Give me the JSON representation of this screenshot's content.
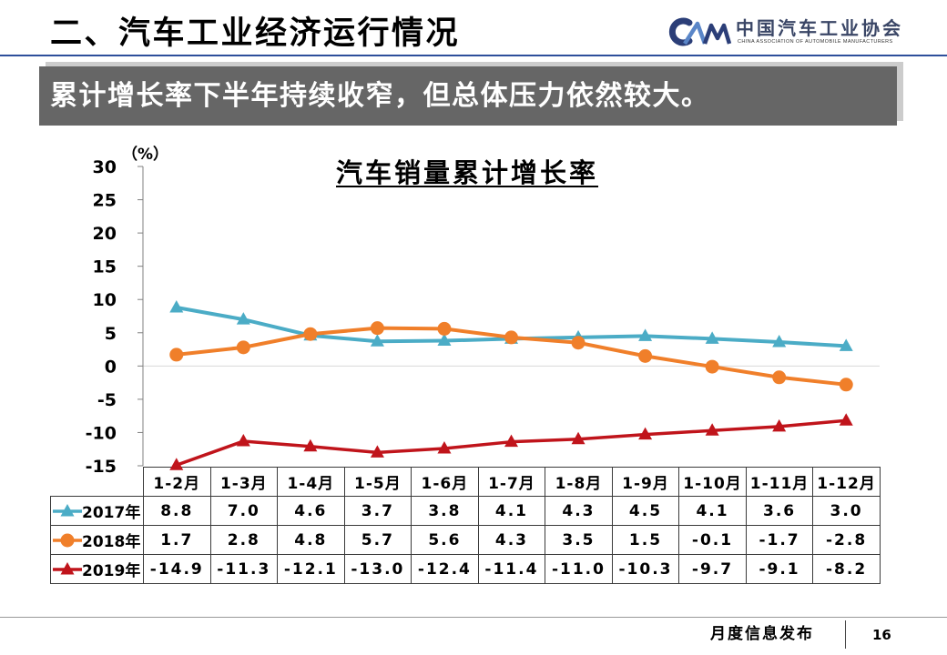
{
  "slide": {
    "title": "二、汽车工业经济运行情况",
    "banner": "累计增长率下半年持续收窄，但总体压力依然较大。",
    "footer_label": "月度信息发布",
    "page_number": "16"
  },
  "logo": {
    "mark": "CAM",
    "name_cn": "中国汽车工业协会",
    "name_en": "CHINA ASSOCIATION OF AUTOMOBILE MANUFACTURERS"
  },
  "colors": {
    "title_rule": "#2E4F9B",
    "banner_bg": "#666666",
    "banner_text": "#FFFFFF",
    "logo_dark": "#2B3E78",
    "logo_light": "#5A86C8"
  },
  "chart_data": {
    "type": "line",
    "title": "汽车销量累计增长率",
    "ylabel": "（%）",
    "ylim": [
      -15,
      30
    ],
    "yticks": [
      30,
      25,
      20,
      15,
      10,
      5,
      0,
      -5,
      -10,
      -15
    ],
    "grid": false,
    "zero_line": true,
    "legend": "data-table-left",
    "categories": [
      "1-2月",
      "1-3月",
      "1-4月",
      "1-5月",
      "1-6月",
      "1-7月",
      "1-8月",
      "1-9月",
      "1-10月",
      "1-11月",
      "1-12月"
    ],
    "series": [
      {
        "name": "2017年",
        "color": "#4BACC6",
        "marker": "triangle",
        "values": [
          8.8,
          7.0,
          4.6,
          3.7,
          3.8,
          4.1,
          4.3,
          4.5,
          4.1,
          3.6,
          3.0
        ]
      },
      {
        "name": "2018年",
        "color": "#F07F2A",
        "marker": "circle",
        "values": [
          1.7,
          2.8,
          4.8,
          5.7,
          5.6,
          4.3,
          3.5,
          1.5,
          -0.1,
          -1.7,
          -2.8
        ]
      },
      {
        "name": "2019年",
        "color": "#C0141B",
        "marker": "triangle",
        "values": [
          -14.9,
          -11.3,
          -12.1,
          -13.0,
          -12.4,
          -11.4,
          -11.0,
          -10.3,
          -9.7,
          -9.1,
          -8.2
        ]
      }
    ]
  }
}
